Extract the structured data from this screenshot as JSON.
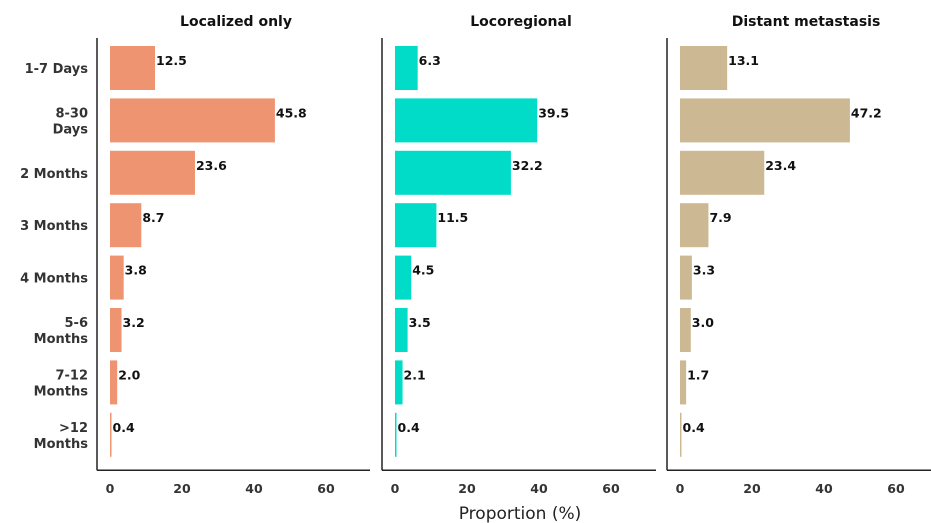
{
  "chart_data": {
    "type": "bar",
    "orientation": "horizontal",
    "categories": [
      [
        "1-7 Days"
      ],
      [
        "8-30",
        "Days"
      ],
      [
        "2 Months"
      ],
      [
        "3 Months"
      ],
      [
        "4 Months"
      ],
      [
        "5-6",
        "Months"
      ],
      [
        "7-12",
        "Months"
      ],
      [
        ">12",
        "Months"
      ]
    ],
    "panels": [
      {
        "title": "Localized only",
        "color": "#ee9470",
        "values": [
          12.5,
          45.8,
          23.6,
          8.7,
          3.8,
          3.2,
          2.0,
          0.4
        ]
      },
      {
        "title": "Locoregional",
        "color": "#00dcc8",
        "values": [
          6.3,
          39.5,
          32.2,
          11.5,
          4.5,
          3.5,
          2.1,
          0.4
        ]
      },
      {
        "title": "Distant metastasis",
        "color": "#ccb994",
        "values": [
          13.1,
          47.2,
          23.4,
          7.9,
          3.3,
          3.0,
          1.7,
          0.4
        ]
      }
    ],
    "xlabel": "Proportion (%)",
    "ylabel": "",
    "xlim": [
      0,
      66
    ],
    "xticks": [
      0,
      20,
      40,
      60
    ],
    "value_format": "0.0",
    "grid": false,
    "legend": "none"
  }
}
